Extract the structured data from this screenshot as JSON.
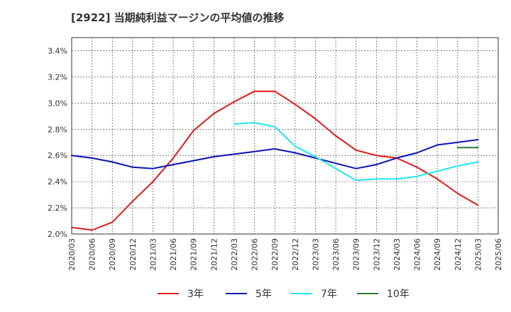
{
  "chart_data": {
    "type": "line",
    "title": "[2922]  当期純利益マージンの平均値の推移",
    "xlabel": "",
    "ylabel": "",
    "ylim": [
      2.0,
      3.5
    ],
    "yticks": [
      2.0,
      2.2,
      2.4,
      2.6,
      2.8,
      3.0,
      3.2,
      3.4
    ],
    "ytick_labels": [
      "2.0%",
      "2.2%",
      "2.4%",
      "2.6%",
      "2.8%",
      "3.0%",
      "3.2%",
      "3.4%"
    ],
    "xticks": [
      "2020/03",
      "2020/06",
      "2020/09",
      "2020/12",
      "2021/03",
      "2021/06",
      "2021/09",
      "2021/12",
      "2022/03",
      "2022/06",
      "2022/09",
      "2022/12",
      "2023/03",
      "2023/06",
      "2023/09",
      "2023/12",
      "2024/03",
      "2024/06",
      "2024/09",
      "2024/12",
      "2025/03",
      "2025/06"
    ],
    "grid": true,
    "legend_position": "bottom",
    "series": [
      {
        "name": "3年",
        "color": "#e41a1c",
        "x": [
          "2020/03",
          "2020/06",
          "2020/09",
          "2020/12",
          "2021/03",
          "2021/06",
          "2021/09",
          "2021/12",
          "2022/03",
          "2022/06",
          "2022/09",
          "2022/12",
          "2023/03",
          "2023/06",
          "2023/09",
          "2023/12",
          "2024/03",
          "2024/06",
          "2024/09",
          "2024/12",
          "2025/03"
        ],
        "values": [
          2.05,
          2.03,
          2.09,
          2.25,
          2.4,
          2.58,
          2.79,
          2.92,
          3.01,
          3.09,
          3.09,
          2.99,
          2.88,
          2.75,
          2.64,
          2.6,
          2.58,
          2.51,
          2.42,
          2.31,
          2.22
        ]
      },
      {
        "name": "5年",
        "color": "#0a14b4",
        "x": [
          "2020/03",
          "2020/06",
          "2020/09",
          "2020/12",
          "2021/03",
          "2021/06",
          "2021/09",
          "2021/12",
          "2022/03",
          "2022/06",
          "2022/09",
          "2022/12",
          "2023/03",
          "2023/06",
          "2023/09",
          "2023/12",
          "2024/03",
          "2024/06",
          "2024/09",
          "2024/12",
          "2025/03"
        ],
        "values": [
          2.6,
          2.58,
          2.55,
          2.51,
          2.5,
          2.53,
          2.56,
          2.59,
          2.61,
          2.63,
          2.65,
          2.62,
          2.58,
          2.54,
          2.5,
          2.53,
          2.58,
          2.62,
          2.68,
          2.7,
          2.72
        ]
      },
      {
        "name": "7年",
        "color": "#22e6ee",
        "x": [
          "2022/03",
          "2022/06",
          "2022/09",
          "2022/12",
          "2023/03",
          "2023/06",
          "2023/09",
          "2023/12",
          "2024/03",
          "2024/06",
          "2024/09",
          "2024/12",
          "2025/03"
        ],
        "values": [
          2.84,
          2.85,
          2.82,
          2.67,
          2.59,
          2.5,
          2.41,
          2.42,
          2.42,
          2.44,
          2.48,
          2.52,
          2.55
        ]
      },
      {
        "name": "10年",
        "color": "#2e7d32",
        "x": [
          "2024/12",
          "2025/03"
        ],
        "values": [
          2.66,
          2.66
        ]
      }
    ]
  }
}
